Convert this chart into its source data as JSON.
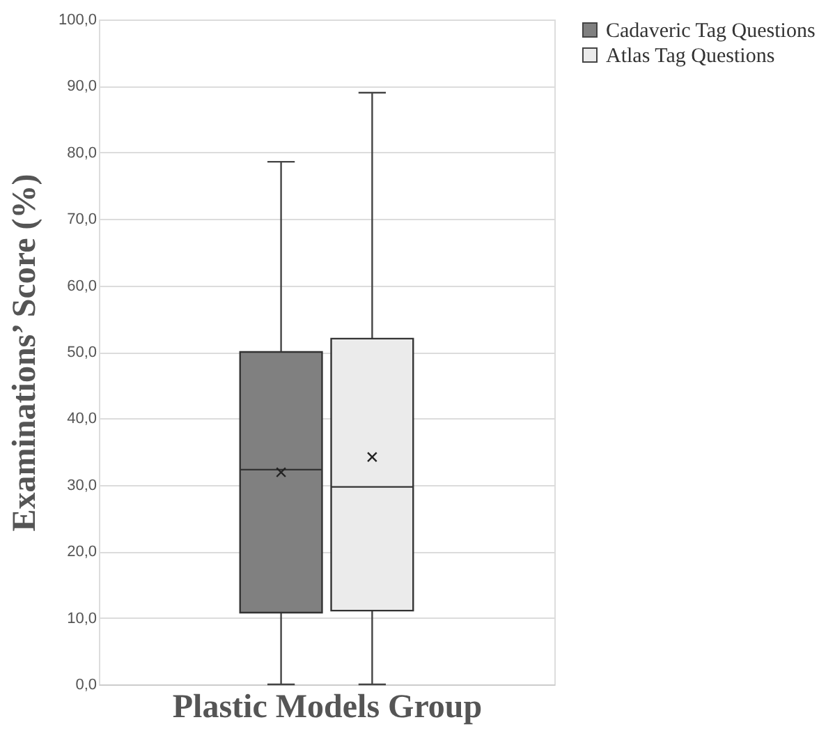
{
  "chart_data": {
    "type": "box",
    "xlabel": "Plastic Models Group",
    "ylabel": "Examinations’ Score (%)",
    "categories": [
      null
    ],
    "series": [
      {
        "name": "Cadaveric Tag Questions",
        "color": "#808080",
        "boxes": [
          {
            "low": 0,
            "q1": 10.8,
            "median": 32.3,
            "q3": 50.0,
            "high": 78.6,
            "mean": 31.9
          }
        ]
      },
      {
        "name": "Atlas Tag Questions",
        "color": "#ebebeb",
        "boxes": [
          {
            "low": 0,
            "q1": 11.1,
            "median": 29.7,
            "q3": 52.0,
            "high": 89.0,
            "mean": 34.2
          }
        ]
      }
    ],
    "ylim": [
      0,
      100
    ],
    "yticks": [
      {
        "value": 0,
        "label": "0,0"
      },
      {
        "value": 10,
        "label": "10,0"
      },
      {
        "value": 20,
        "label": "20,0"
      },
      {
        "value": 30,
        "label": "30,0"
      },
      {
        "value": 40,
        "label": "40,0"
      },
      {
        "value": 50,
        "label": "50,0"
      },
      {
        "value": 60,
        "label": "60,0"
      },
      {
        "value": 70,
        "label": "70,0"
      },
      {
        "value": 80,
        "label": "80,0"
      },
      {
        "value": 90,
        "label": "90,0"
      },
      {
        "value": 100,
        "label": "100,0"
      }
    ],
    "grid": "y",
    "legend": "right"
  }
}
